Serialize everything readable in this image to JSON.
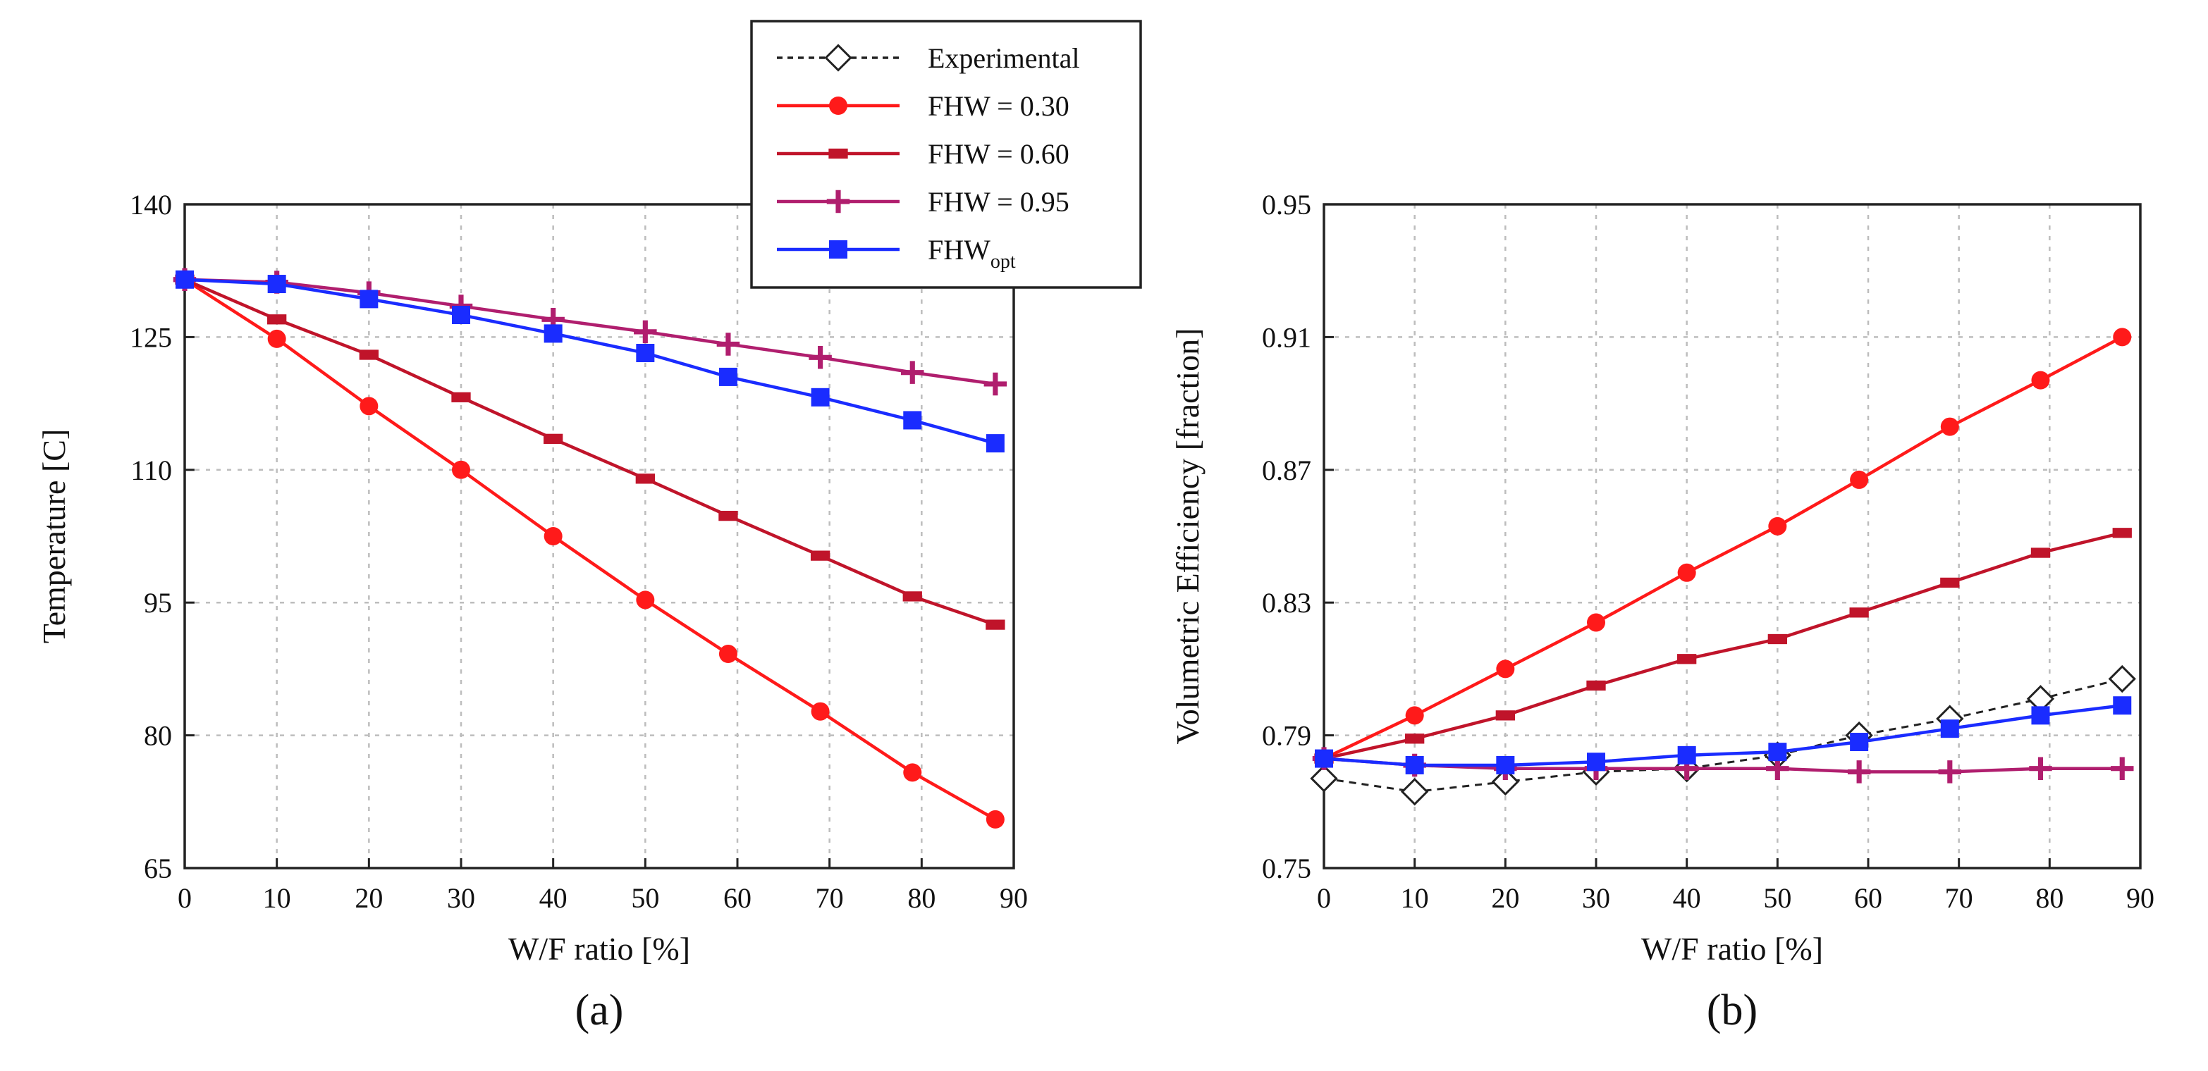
{
  "chart_data": [
    {
      "type": "line",
      "panel_label": "(a)",
      "xlabel": "W/F ratio [%]",
      "ylabel": "Temperature [C]",
      "xlim": [
        0,
        90
      ],
      "ylim": [
        65,
        140
      ],
      "xticks": [
        0,
        10,
        20,
        30,
        40,
        50,
        60,
        70,
        80,
        90
      ],
      "yticks": [
        65,
        80,
        95,
        110,
        125,
        140
      ],
      "grid": true,
      "series": [
        {
          "name": "FHW = 0.30",
          "color": "#ff1a1a",
          "marker": "circle",
          "x": [
            0,
            10,
            20,
            30,
            40,
            50,
            59,
            69,
            79,
            88
          ],
          "y": [
            131.5,
            124.8,
            117.2,
            110.0,
            102.5,
            95.3,
            89.2,
            82.7,
            75.8,
            70.5
          ]
        },
        {
          "name": "FHW = 0.60",
          "color": "#c0142a",
          "marker": "bar",
          "x": [
            0,
            10,
            20,
            30,
            40,
            50,
            59,
            69,
            79,
            88
          ],
          "y": [
            131.5,
            127.0,
            123.0,
            118.2,
            113.5,
            109.0,
            104.8,
            100.3,
            95.7,
            92.5
          ]
        },
        {
          "name": "FHW = 0.95",
          "color": "#b01e6e",
          "marker": "plus",
          "x": [
            0,
            10,
            20,
            30,
            40,
            50,
            59,
            69,
            79,
            88
          ],
          "y": [
            131.5,
            131.2,
            130.0,
            128.5,
            127.0,
            125.6,
            124.2,
            122.7,
            121.0,
            119.7
          ]
        },
        {
          "name": "FHW",
          "name_sub": "opt",
          "color": "#1a2cff",
          "marker": "square",
          "x": [
            0,
            10,
            20,
            30,
            40,
            50,
            59,
            69,
            79,
            88
          ],
          "y": [
            131.5,
            131.0,
            129.3,
            127.5,
            125.4,
            123.2,
            120.5,
            118.2,
            115.6,
            113.0
          ]
        }
      ]
    },
    {
      "type": "line",
      "panel_label": "(b)",
      "xlabel": "W/F ratio [%]",
      "ylabel": "Volumetric Efficiency [fraction]",
      "xlim": [
        0,
        90
      ],
      "ylim": [
        0.75,
        0.95
      ],
      "xticks": [
        0,
        10,
        20,
        30,
        40,
        50,
        60,
        70,
        80,
        90
      ],
      "yticks": [
        0.75,
        0.79,
        0.83,
        0.87,
        0.91,
        0.95
      ],
      "grid": true,
      "series": [
        {
          "name": "Experimental",
          "color": "#222222",
          "marker": "diamond",
          "dashed": true,
          "x": [
            0,
            10,
            20,
            30,
            40,
            50,
            59,
            69,
            79,
            88
          ],
          "y": [
            0.777,
            0.773,
            0.776,
            0.779,
            0.78,
            0.784,
            0.79,
            0.795,
            0.801,
            0.807
          ]
        },
        {
          "name": "FHW = 0.30",
          "color": "#ff1a1a",
          "marker": "circle",
          "x": [
            0,
            10,
            20,
            30,
            40,
            50,
            59,
            69,
            79,
            88
          ],
          "y": [
            0.783,
            0.796,
            0.81,
            0.824,
            0.839,
            0.853,
            0.867,
            0.883,
            0.897,
            0.91
          ]
        },
        {
          "name": "FHW = 0.60",
          "color": "#c0142a",
          "marker": "bar",
          "x": [
            0,
            10,
            20,
            30,
            40,
            50,
            59,
            69,
            79,
            88
          ],
          "y": [
            0.783,
            0.789,
            0.796,
            0.805,
            0.813,
            0.819,
            0.827,
            0.836,
            0.845,
            0.851
          ]
        },
        {
          "name": "FHW = 0.95",
          "color": "#b01e6e",
          "marker": "plus",
          "x": [
            0,
            10,
            20,
            30,
            40,
            50,
            59,
            69,
            79,
            88
          ],
          "y": [
            0.783,
            0.781,
            0.78,
            0.78,
            0.78,
            0.78,
            0.779,
            0.779,
            0.78,
            0.78
          ]
        },
        {
          "name": "FHW",
          "name_sub": "opt",
          "color": "#1a2cff",
          "marker": "square",
          "x": [
            0,
            10,
            20,
            30,
            40,
            50,
            59,
            69,
            79,
            88
          ],
          "y": [
            0.783,
            0.781,
            0.781,
            0.782,
            0.784,
            0.785,
            0.788,
            0.792,
            0.796,
            0.799
          ]
        }
      ]
    }
  ],
  "legend": {
    "placement": "top-center",
    "entries": [
      {
        "label": "Experimental",
        "color": "#222222",
        "marker": "diamond",
        "dashed": true
      },
      {
        "label": "FHW = 0.30",
        "color": "#ff1a1a",
        "marker": "circle"
      },
      {
        "label": "FHW = 0.60",
        "color": "#c0142a",
        "marker": "bar"
      },
      {
        "label": "FHW = 0.95",
        "color": "#b01e6e",
        "marker": "plus"
      },
      {
        "label": "FHW",
        "label_sub": "opt",
        "color": "#1a2cff",
        "marker": "square"
      }
    ]
  }
}
